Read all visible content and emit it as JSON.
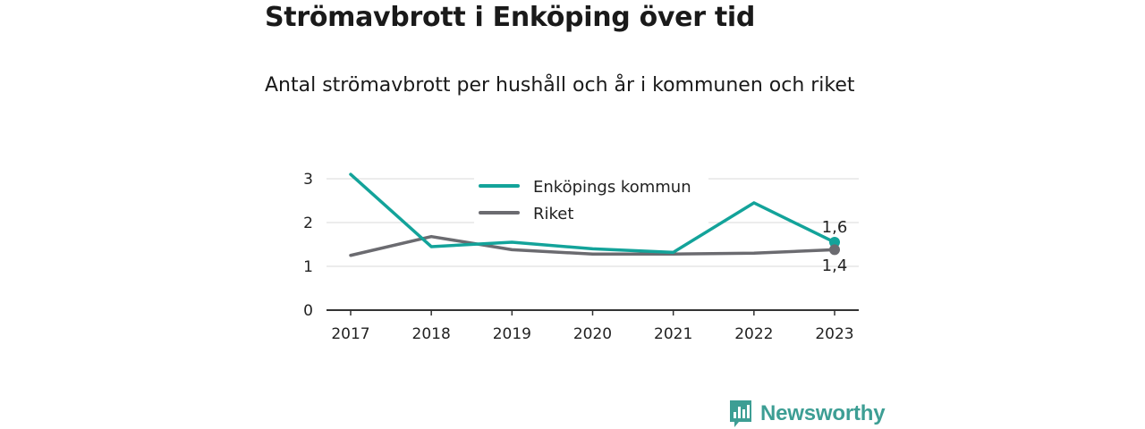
{
  "title": "Strömavbrott i Enköping över tid",
  "subtitle": "Antal strömavbrott per hushåll och år i kommunen och riket",
  "logo": {
    "text": "Newsworthy",
    "color": "#3d9e94",
    "icon": "newsworthy-logo-icon"
  },
  "chart_data": {
    "type": "line",
    "x": [
      "2017",
      "2018",
      "2019",
      "2020",
      "2021",
      "2022",
      "2023"
    ],
    "series": [
      {
        "name": "Enköpings kommun",
        "color": "#13a39a",
        "values": [
          3.1,
          1.45,
          1.55,
          1.4,
          1.32,
          2.45,
          1.55
        ],
        "end_label": "1,6"
      },
      {
        "name": "Riket",
        "color": "#6b6b70",
        "values": [
          1.25,
          1.68,
          1.38,
          1.28,
          1.28,
          1.3,
          1.38
        ],
        "end_label": "1,4"
      }
    ],
    "yticks": [
      "0",
      "1",
      "2",
      "3"
    ],
    "ylim": [
      0,
      3.1
    ],
    "grid": true,
    "legend": "top-center"
  }
}
